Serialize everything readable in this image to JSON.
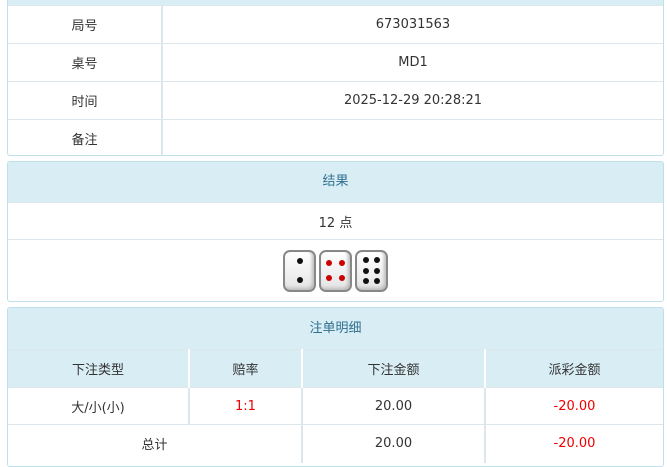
{
  "info": {
    "rows": [
      {
        "label": "局号",
        "value": "673031563"
      },
      {
        "label": "桌号",
        "value": "MD1"
      },
      {
        "label": "时间",
        "value": "2025-12-29 20:28:21"
      },
      {
        "label": "备注",
        "value": ""
      }
    ]
  },
  "result": {
    "title": "结果",
    "points": "12 点",
    "dice": [
      2,
      4,
      6
    ],
    "dice_colors": {
      "pip": "#111111",
      "four_pip": "#cc0000"
    }
  },
  "bets": {
    "title": "注单明细",
    "columns": [
      "下注类型",
      "赔率",
      "下注金额",
      "派彩金额"
    ],
    "rows": [
      {
        "type": "大/小(小)",
        "odds": "1:1",
        "amount": "20.00",
        "payout": "-20.00"
      }
    ],
    "total": {
      "label": "总计",
      "amount": "20.00",
      "payout": "-20.00"
    }
  }
}
